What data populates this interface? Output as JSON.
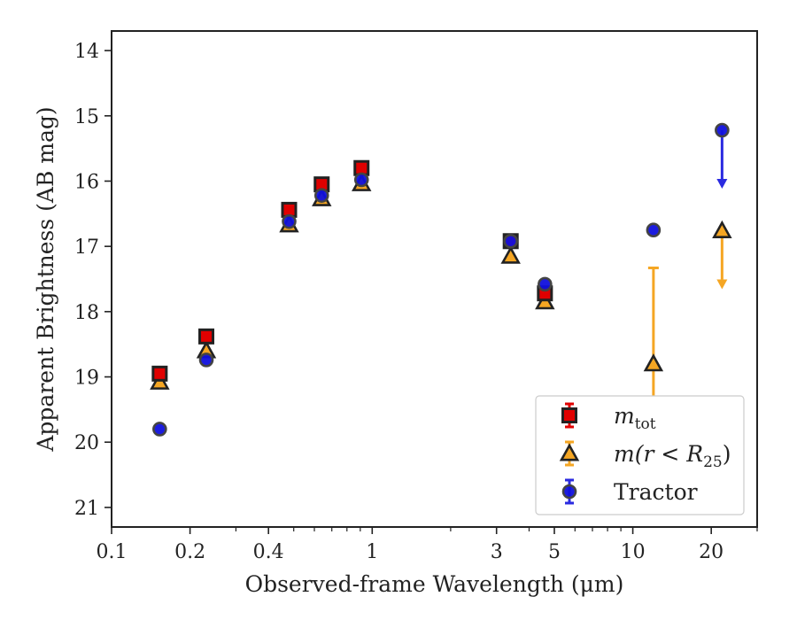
{
  "chart_data": {
    "type": "scatter",
    "xlabel": "Observed-frame Wavelength (μm)",
    "ylabel": "Apparent Brightness (AB mag)",
    "xscale": "log",
    "xlim": [
      0.1,
      30
    ],
    "ylim": [
      21.3,
      13.7
    ],
    "y_inverted": true,
    "grid": false,
    "legend_position": "lower-right",
    "x_ticks": [
      {
        "value": 0.1,
        "label": "0.1"
      },
      {
        "value": 0.2,
        "label": "0.2"
      },
      {
        "value": 0.4,
        "label": "0.4"
      },
      {
        "value": 1,
        "label": "1"
      },
      {
        "value": 3,
        "label": "3"
      },
      {
        "value": 5,
        "label": "5"
      },
      {
        "value": 10,
        "label": "10"
      },
      {
        "value": 20,
        "label": "20"
      }
    ],
    "y_ticks": [
      {
        "value": 14,
        "label": "14"
      },
      {
        "value": 15,
        "label": "15"
      },
      {
        "value": 16,
        "label": "16"
      },
      {
        "value": 17,
        "label": "17"
      },
      {
        "value": 18,
        "label": "18"
      },
      {
        "value": 19,
        "label": "19"
      },
      {
        "value": 20,
        "label": "20"
      },
      {
        "value": 21,
        "label": "21"
      }
    ],
    "series": [
      {
        "key": "mtot",
        "marker": "square",
        "color": "#e00000",
        "edge_color": "#222222",
        "points": [
          {
            "x": 0.153,
            "y": 18.95
          },
          {
            "x": 0.231,
            "y": 18.38
          },
          {
            "x": 0.48,
            "y": 16.44
          },
          {
            "x": 0.64,
            "y": 16.05
          },
          {
            "x": 0.91,
            "y": 15.8
          },
          {
            "x": 3.4,
            "y": 16.92
          },
          {
            "x": 4.6,
            "y": 17.72
          }
        ]
      },
      {
        "key": "mr25",
        "marker": "triangle",
        "color": "#f5a623",
        "edge_color": "#222222",
        "errorbar_color": "#f5a623",
        "points": [
          {
            "x": 0.153,
            "y": 19.08
          },
          {
            "x": 0.231,
            "y": 18.6
          },
          {
            "x": 0.48,
            "y": 16.67
          },
          {
            "x": 0.64,
            "y": 16.27
          },
          {
            "x": 0.91,
            "y": 16.04
          },
          {
            "x": 3.4,
            "y": 17.15
          },
          {
            "x": 4.6,
            "y": 17.85
          },
          {
            "x": 12.0,
            "y": 18.8,
            "err_low": 1.47,
            "err_high": 1.47
          },
          {
            "x": 22.0,
            "y": 16.76,
            "upper_limit": true
          }
        ]
      },
      {
        "key": "tractor",
        "marker": "circle",
        "color": "#1010dd",
        "edge_color": "#444444",
        "points": [
          {
            "x": 0.153,
            "y": 19.8
          },
          {
            "x": 0.231,
            "y": 18.74
          },
          {
            "x": 0.48,
            "y": 16.62
          },
          {
            "x": 0.64,
            "y": 16.22
          },
          {
            "x": 0.91,
            "y": 15.98
          },
          {
            "x": 3.4,
            "y": 16.92
          },
          {
            "x": 4.6,
            "y": 17.58
          },
          {
            "x": 12.0,
            "y": 16.75
          },
          {
            "x": 22.0,
            "y": 15.22,
            "upper_limit": true
          }
        ]
      }
    ],
    "legend": [
      {
        "key": "mtot",
        "base": "m",
        "sub": "tot",
        "tail": ""
      },
      {
        "key": "mr25",
        "base": "m(r < R",
        "sub": "25",
        "tail": ")"
      },
      {
        "key": "tractor",
        "base": "Tractor",
        "sub": "",
        "tail": ""
      }
    ]
  }
}
